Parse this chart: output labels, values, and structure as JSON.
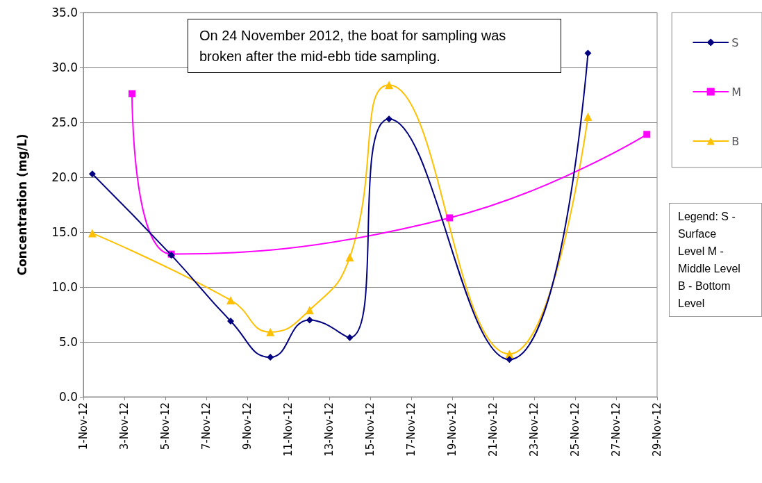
{
  "chart_data": {
    "type": "line",
    "ylabel": "Concentration (mg/L)",
    "annotations": [
      "On 24 November 2012, the boat for sampling was broken after the mid-ebb tide sampling.",
      "Legend: S - Surface Level M - Middle Level B - Bottom Level"
    ],
    "series": [
      {
        "name": "S",
        "color": "#000080",
        "marker": "diamond",
        "x": [
          "2012-11-01T10:30",
          "2012-11-05T07:00",
          "2012-11-08T04:30",
          "2012-11-10T03:00",
          "2012-11-12T01:00",
          "2012-11-14T00:00",
          "2012-11-15T22:00",
          "2012-11-21T19:00",
          "2012-11-25T15:00"
        ],
        "values": [
          20.3,
          12.9,
          6.9,
          3.6,
          7.0,
          5.4,
          25.3,
          3.4,
          31.3
        ]
      },
      {
        "name": "M",
        "color": "#ff00ff",
        "marker": "square",
        "x": [
          "2012-11-03T09:00",
          "2012-11-05T07:00",
          "2012-11-18T21:00",
          "2012-11-28T12:00"
        ],
        "values": [
          27.6,
          13.0,
          16.3,
          23.9
        ]
      },
      {
        "name": "B",
        "color": "#ffc000",
        "marker": "triangle",
        "x": [
          "2012-11-01T10:30",
          "2012-11-08T04:30",
          "2012-11-10T03:00",
          "2012-11-12T01:00",
          "2012-11-14T00:00",
          "2012-11-15T22:00",
          "2012-11-21T19:00",
          "2012-11-25T15:00"
        ],
        "values": [
          14.9,
          8.8,
          5.9,
          7.9,
          12.7,
          28.4,
          3.9,
          25.5
        ]
      }
    ],
    "xlim": [
      "2012-11-01",
      "2012-11-29"
    ],
    "xticks": [
      {
        "value": "2012-11-01",
        "label": "1-Nov-12"
      },
      {
        "value": "2012-11-03",
        "label": "3-Nov-12"
      },
      {
        "value": "2012-11-05",
        "label": "5-Nov-12"
      },
      {
        "value": "2012-11-07",
        "label": "7-Nov-12"
      },
      {
        "value": "2012-11-09",
        "label": "9-Nov-12"
      },
      {
        "value": "2012-11-11",
        "label": "11-Nov-12"
      },
      {
        "value": "2012-11-13",
        "label": "13-Nov-12"
      },
      {
        "value": "2012-11-15",
        "label": "15-Nov-12"
      },
      {
        "value": "2012-11-17",
        "label": "17-Nov-12"
      },
      {
        "value": "2012-11-19",
        "label": "19-Nov-12"
      },
      {
        "value": "2012-11-21",
        "label": "21-Nov-12"
      },
      {
        "value": "2012-11-23",
        "label": "23-Nov-12"
      },
      {
        "value": "2012-11-25",
        "label": "25-Nov-12"
      },
      {
        "value": "2012-11-27",
        "label": "27-Nov-12"
      },
      {
        "value": "2012-11-29",
        "label": "29-Nov-12"
      }
    ],
    "ylim": [
      0,
      35
    ],
    "yticks": [
      {
        "value": 0,
        "label": "0.0"
      },
      {
        "value": 5,
        "label": "5.0"
      },
      {
        "value": 10,
        "label": "10.0"
      },
      {
        "value": 15,
        "label": "15.0"
      },
      {
        "value": 20,
        "label": "20.0"
      },
      {
        "value": 25,
        "label": "25.0"
      },
      {
        "value": 30,
        "label": "30.0"
      },
      {
        "value": 35,
        "label": "35.0"
      }
    ],
    "grid": "y",
    "legend": "right",
    "line_style": "solid"
  }
}
